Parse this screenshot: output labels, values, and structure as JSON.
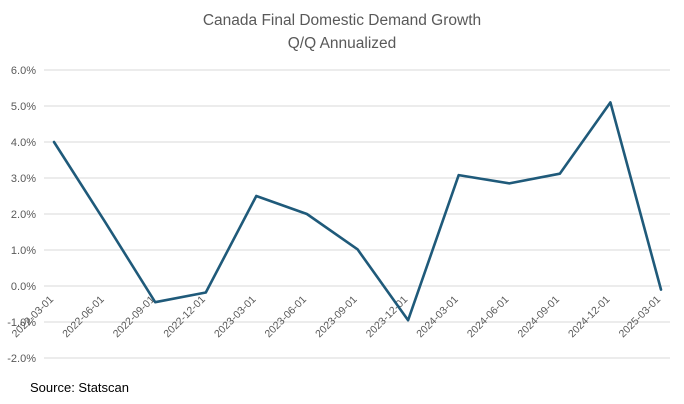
{
  "chart_data": {
    "type": "line",
    "title": "Canada Final Domestic Demand Growth",
    "subtitle": "Q/Q Annualized",
    "xlabel": "",
    "ylabel": "",
    "x": [
      "2022-03-01",
      "2022-06-01",
      "2022-09-01",
      "2022-12-01",
      "2023-03-01",
      "2023-06-01",
      "2023-09-01",
      "2023-12-01",
      "2024-03-01",
      "2024-06-01",
      "2024-09-01",
      "2024-12-01",
      "2025-03-01"
    ],
    "series": [
      {
        "name": "",
        "values": [
          4.0,
          1.8,
          -0.45,
          -0.18,
          2.5,
          2.0,
          1.02,
          -0.95,
          3.08,
          2.85,
          3.12,
          5.1,
          -0.1
        ]
      }
    ],
    "ylim": [
      -2.0,
      6.0
    ],
    "yticks": [
      "6.0%",
      "5.0%",
      "4.0%",
      "3.0%",
      "2.0%",
      "1.0%",
      "0.0%",
      "-1.0%",
      "-2.0%"
    ],
    "grid": true,
    "legend": "none",
    "line_color": "#1f5a7a",
    "grid_color": "#d9d9d9"
  },
  "source": "Source: Statscan"
}
